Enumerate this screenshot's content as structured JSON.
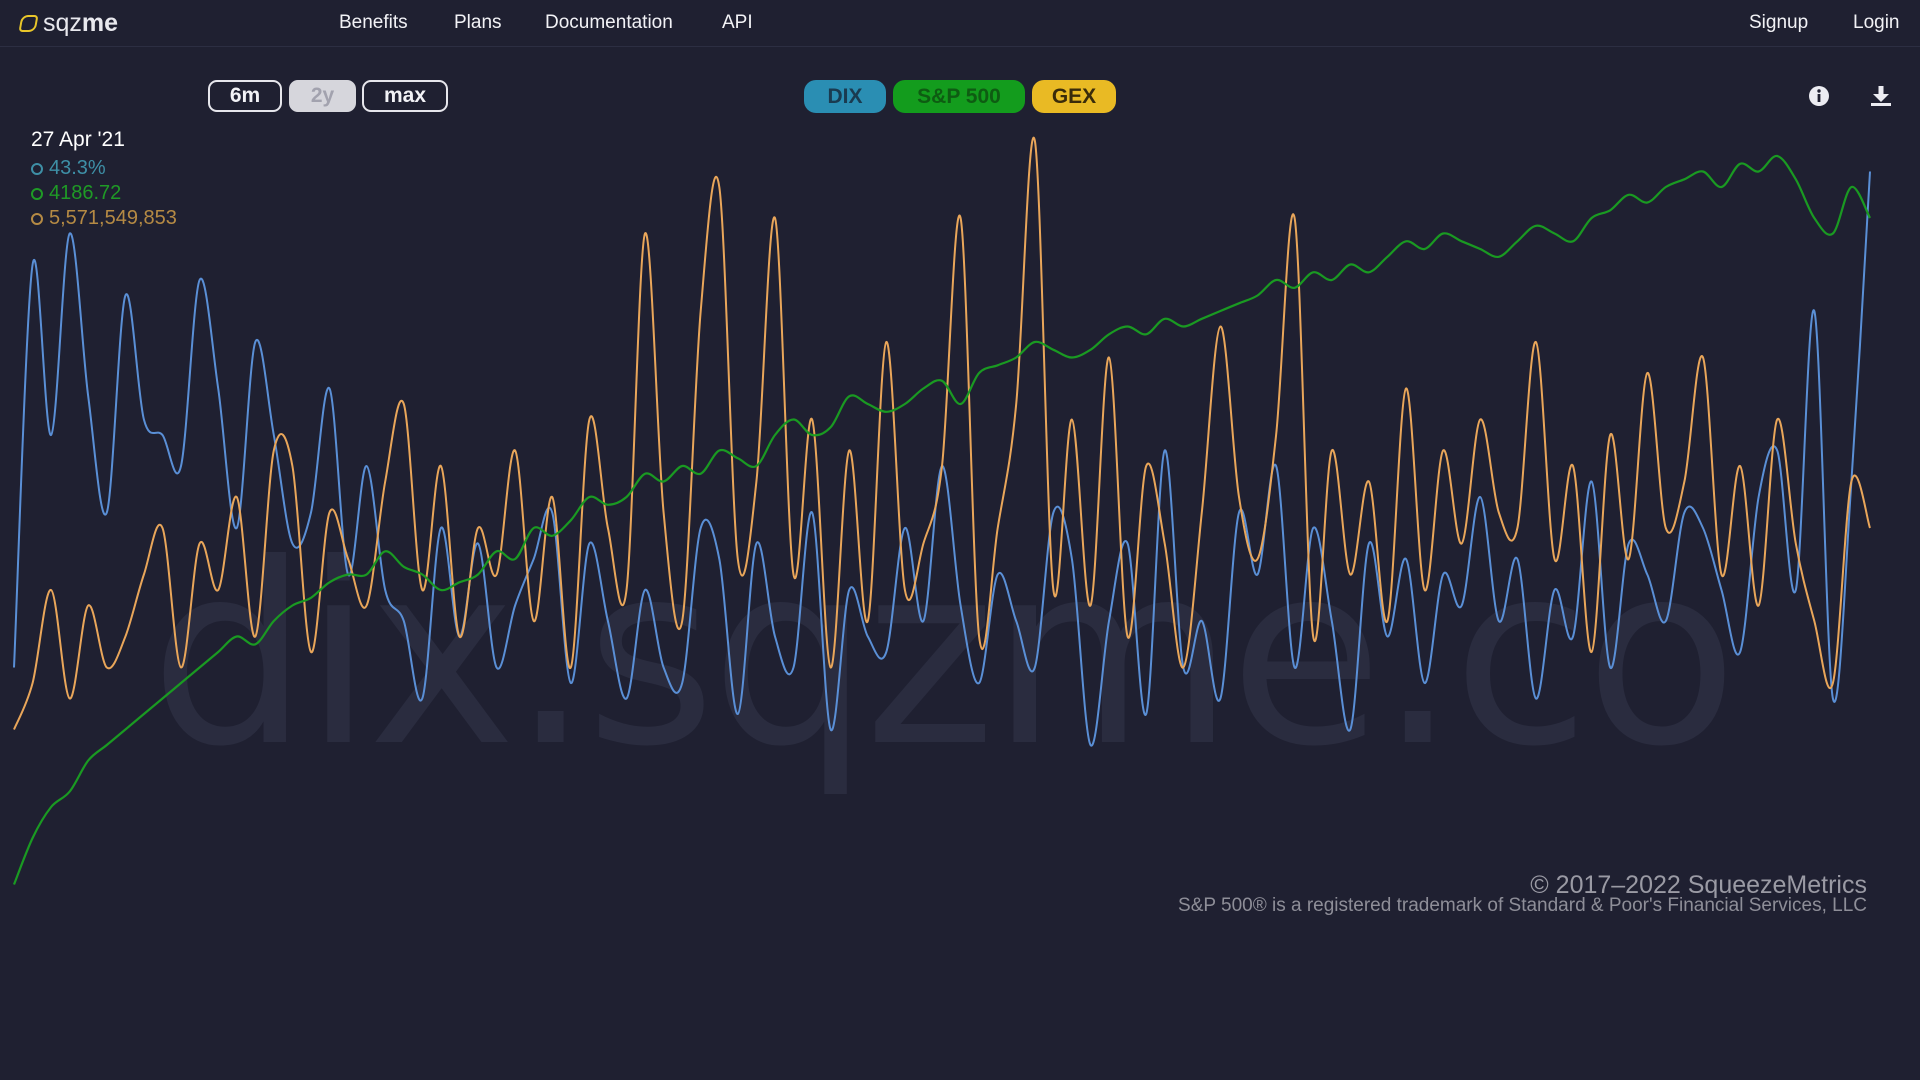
{
  "nav": {
    "logo_part1": "sqz",
    "logo_part2": "me",
    "links": [
      "Benefits",
      "Plans",
      "Documentation",
      "API"
    ],
    "signup": "Signup",
    "login": "Login"
  },
  "range_buttons": [
    "6m",
    "2y",
    "max"
  ],
  "active_range": "2y",
  "series_buttons": [
    {
      "label": "DIX",
      "bg": "#2a8eb3",
      "fg": "#1a3b50"
    },
    {
      "label": "S&P 500",
      "bg": "#139c1d",
      "fg": "#0e5c12"
    },
    {
      "label": "GEX",
      "bg": "#e9ba24",
      "fg": "#3a2c0a"
    }
  ],
  "icons": {
    "info": "info-icon",
    "download": "download-icon"
  },
  "readout": {
    "date": "27 Apr '21",
    "dix": "43.3%",
    "spx": "4186.72",
    "gex": "5,571,549,853",
    "dix_color": "#3e8fa6",
    "spx_color": "#1f9a26",
    "gex_color": "#b58a44"
  },
  "watermark": "dix.sqzme.co",
  "footer": {
    "copyright": "© 2017–2022 SqueezeMetrics",
    "trademark": "S&P 500® is a registered trademark of Standard & Poor's Financial Services, LLC"
  },
  "chart_data": {
    "type": "line",
    "title": "",
    "xlabel": "",
    "ylabel": "",
    "xlim": [
      0,
      100
    ],
    "grid": false,
    "legend": "top-left readout",
    "series": [
      {
        "name": "S&P 500",
        "color": "#1a9a22",
        "ylim": [
          0,
          100
        ],
        "x": [
          0,
          1,
          2,
          3,
          4,
          5,
          6,
          7,
          8,
          9,
          10,
          11,
          12,
          13,
          14,
          15,
          16,
          17,
          18,
          19,
          20,
          21,
          22,
          23,
          24,
          25,
          26,
          27,
          28,
          29,
          30,
          31,
          32,
          33,
          34,
          35,
          36,
          37,
          38,
          39,
          40,
          41,
          42,
          43,
          44,
          45,
          46,
          47,
          48,
          49,
          50,
          51,
          52,
          53,
          54,
          55,
          56,
          57,
          58,
          59,
          60,
          61,
          62,
          63,
          64,
          65,
          66,
          67,
          68,
          69,
          70,
          71,
          72,
          73,
          74,
          75,
          76,
          77,
          78,
          79,
          80,
          81,
          82,
          83,
          84,
          85,
          86,
          87,
          88,
          89,
          90,
          91,
          92,
          93,
          94,
          95,
          96,
          97,
          98,
          99,
          100
        ],
        "values": [
          2,
          8,
          12,
          14,
          18,
          20,
          22,
          24,
          26,
          28,
          30,
          32,
          34,
          33,
          36,
          38,
          39,
          41,
          42,
          42,
          45,
          43,
          42,
          40,
          41,
          42,
          45,
          44,
          48,
          47,
          49,
          52,
          51,
          52,
          55,
          54,
          56,
          55,
          58,
          57,
          56,
          60,
          62,
          60,
          61,
          65,
          64,
          63,
          64,
          66,
          67,
          64,
          68,
          69,
          70,
          72,
          71,
          70,
          71,
          73,
          74,
          73,
          75,
          74,
          75,
          76,
          77,
          78,
          80,
          79,
          81,
          80,
          82,
          81,
          83,
          85,
          84,
          86,
          85,
          84,
          83,
          85,
          87,
          86,
          85,
          88,
          89,
          91,
          90,
          92,
          93,
          94,
          92,
          95,
          94,
          96,
          93,
          88,
          86,
          92,
          88
        ]
      },
      {
        "name": "DIX",
        "color": "#5a8fd6",
        "ylim": [
          0,
          100
        ],
        "x": [
          0,
          1,
          2,
          3,
          4,
          5,
          6,
          7,
          8,
          9,
          10,
          11,
          12,
          13,
          14,
          15,
          16,
          17,
          18,
          19,
          20,
          21,
          22,
          23,
          24,
          25,
          26,
          27,
          28,
          29,
          30,
          31,
          32,
          33,
          34,
          35,
          36,
          37,
          38,
          39,
          40,
          41,
          42,
          43,
          44,
          45,
          46,
          47,
          48,
          49,
          50,
          51,
          52,
          53,
          54,
          55,
          56,
          57,
          58,
          59,
          60,
          61,
          62,
          63,
          64,
          65,
          66,
          67,
          68,
          69,
          70,
          71,
          72,
          73,
          74,
          75,
          76,
          77,
          78,
          79,
          80,
          81,
          82,
          83,
          84,
          85,
          86,
          87,
          88,
          89,
          90,
          91,
          92,
          93,
          94,
          95,
          96,
          97,
          98,
          99,
          100
        ],
        "values": [
          30,
          82,
          60,
          86,
          65,
          50,
          78,
          62,
          60,
          56,
          80,
          66,
          48,
          72,
          60,
          46,
          50,
          66,
          42,
          56,
          40,
          36,
          26,
          48,
          34,
          46,
          30,
          38,
          44,
          50,
          28,
          46,
          36,
          26,
          40,
          30,
          28,
          48,
          44,
          24,
          46,
          34,
          30,
          50,
          22,
          40,
          34,
          32,
          48,
          36,
          56,
          38,
          28,
          42,
          36,
          30,
          50,
          44,
          20,
          36,
          46,
          24,
          58,
          30,
          36,
          26,
          50,
          42,
          56,
          30,
          48,
          36,
          22,
          46,
          34,
          44,
          28,
          42,
          38,
          52,
          36,
          44,
          26,
          40,
          34,
          54,
          30,
          46,
          42,
          36,
          50,
          48,
          40,
          32,
          52,
          58,
          40,
          76,
          26,
          54,
          94
        ]
      },
      {
        "name": "GEX",
        "color": "#e9a65a",
        "ylim": [
          0,
          100
        ],
        "x": [
          0,
          1,
          2,
          3,
          4,
          5,
          6,
          7,
          8,
          9,
          10,
          11,
          12,
          13,
          14,
          15,
          16,
          17,
          18,
          19,
          20,
          21,
          22,
          23,
          24,
          25,
          26,
          27,
          28,
          29,
          30,
          31,
          32,
          33,
          34,
          35,
          36,
          37,
          38,
          39,
          40,
          41,
          42,
          43,
          44,
          45,
          46,
          47,
          48,
          49,
          50,
          51,
          52,
          53,
          54,
          55,
          56,
          57,
          58,
          59,
          60,
          61,
          62,
          63,
          64,
          65,
          66,
          67,
          68,
          69,
          70,
          71,
          72,
          73,
          74,
          75,
          76,
          77,
          78,
          79,
          80,
          81,
          82,
          83,
          84,
          85,
          86,
          87,
          88,
          89,
          90,
          91,
          92,
          93,
          94,
          95,
          96,
          97,
          98,
          99,
          100
        ],
        "values": [
          22,
          28,
          40,
          26,
          38,
          30,
          34,
          42,
          48,
          30,
          46,
          40,
          52,
          34,
          58,
          56,
          32,
          50,
          44,
          38,
          54,
          64,
          40,
          56,
          34,
          48,
          42,
          58,
          36,
          52,
          30,
          62,
          48,
          40,
          86,
          50,
          36,
          76,
          92,
          44,
          54,
          88,
          42,
          62,
          30,
          58,
          36,
          72,
          40,
          46,
          56,
          88,
          34,
          48,
          64,
          98,
          40,
          62,
          38,
          70,
          34,
          56,
          46,
          30,
          50,
          74,
          52,
          44,
          60,
          88,
          34,
          58,
          42,
          54,
          36,
          66,
          40,
          58,
          46,
          62,
          50,
          48,
          72,
          44,
          56,
          32,
          60,
          44,
          68,
          48,
          54,
          70,
          42,
          56,
          38,
          62,
          46,
          36,
          28,
          54,
          48
        ]
      }
    ]
  }
}
